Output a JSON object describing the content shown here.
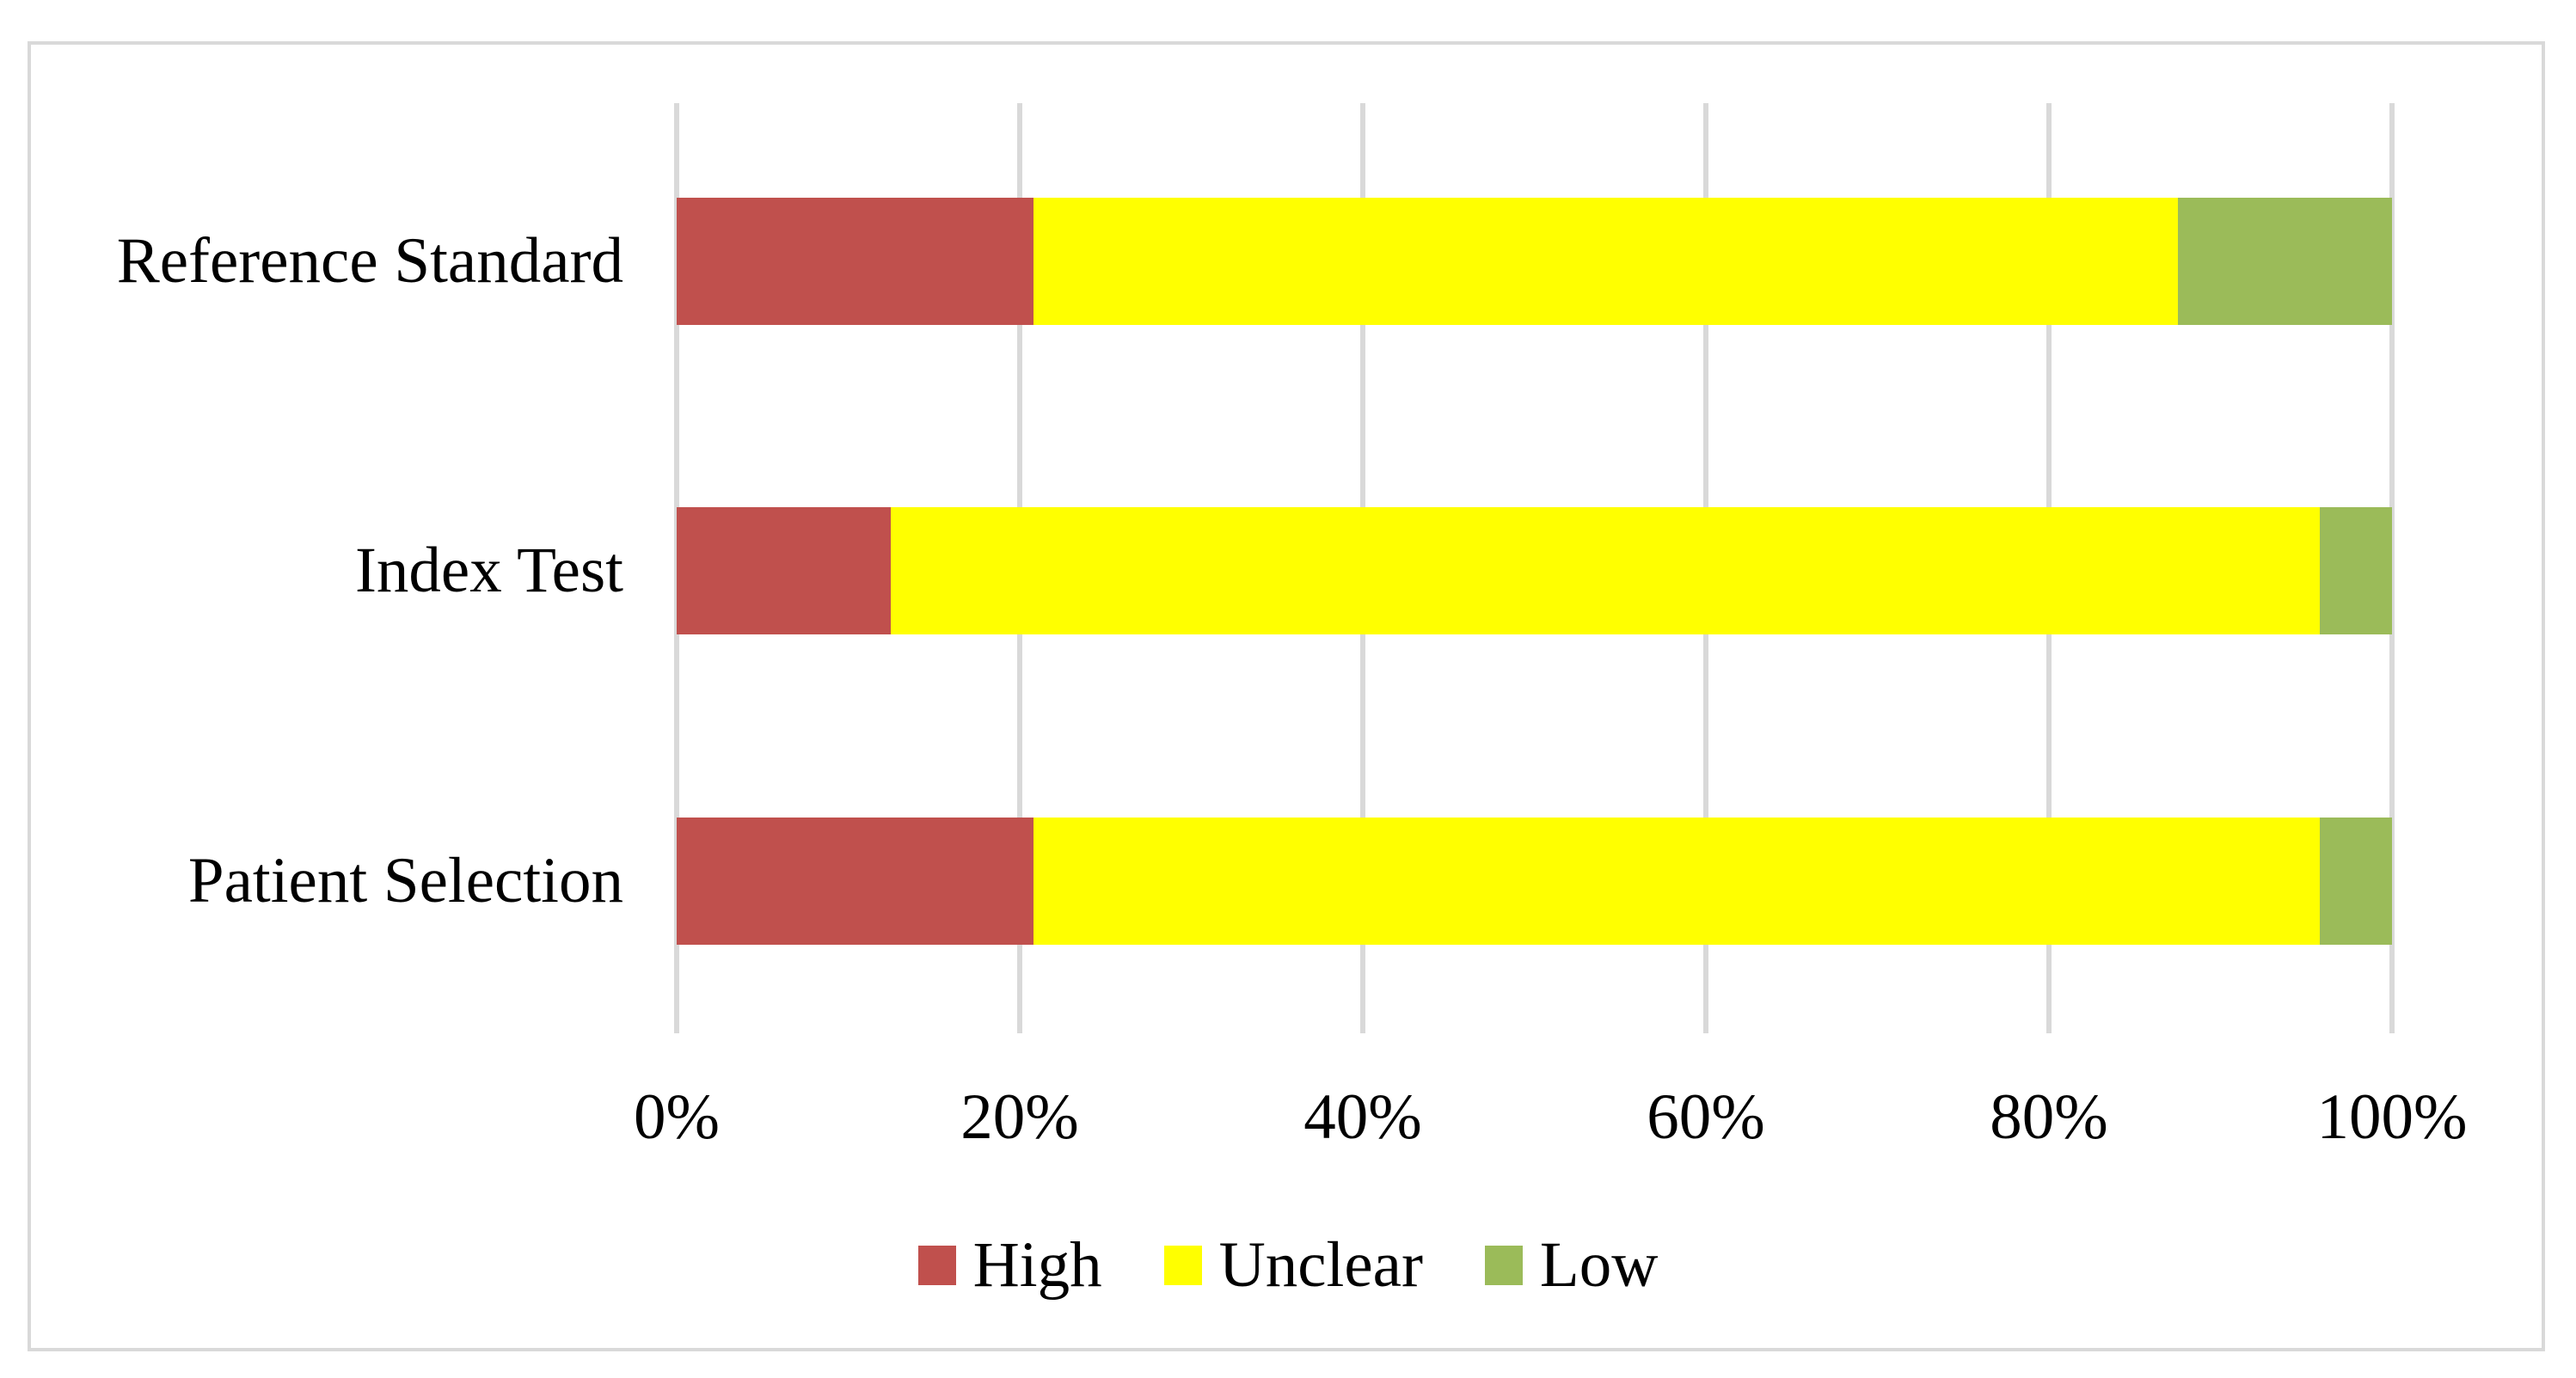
{
  "chart_data": {
    "type": "bar",
    "orientation": "horizontal",
    "stacked": true,
    "title": "",
    "categories": [
      "Reference Standard",
      "Index Test",
      "Patient Selection"
    ],
    "series": [
      {
        "name": "High",
        "color": "#C0504D",
        "values": [
          20.8,
          12.5,
          20.8
        ]
      },
      {
        "name": "Unclear",
        "color": "#FFFF00",
        "values": [
          66.7,
          83.3,
          75.0
        ]
      },
      {
        "name": "Low",
        "color": "#9BBB59",
        "values": [
          12.5,
          4.2,
          4.2
        ]
      }
    ],
    "x_tick_labels": [
      "0%",
      "20%",
      "40%",
      "60%",
      "80%",
      "100%"
    ],
    "xlim": [
      0,
      100
    ],
    "x_unit": "%",
    "grid": "vertical",
    "legend": [
      "High",
      "Unclear",
      "Low"
    ],
    "legend_position": "bottom"
  },
  "colors": {
    "grid": "#D9D9D9",
    "frame_border": "#D9D9D9",
    "background": "#FFFFFF",
    "text": "#000000"
  }
}
